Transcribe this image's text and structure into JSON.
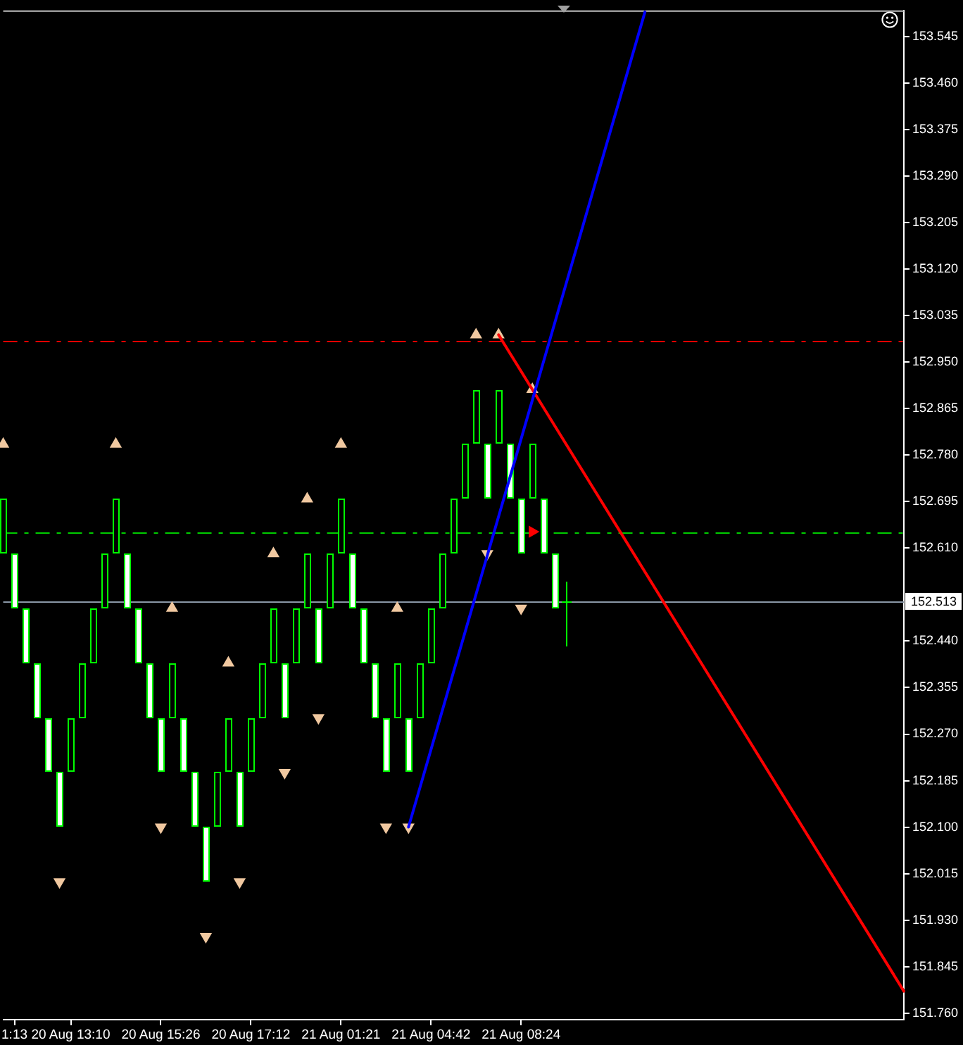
{
  "chart_data": {
    "type": "candlestick",
    "categories": [
      null,
      "1:13",
      null,
      null,
      null,
      null,
      "20 Aug 13:10",
      null,
      null,
      null,
      null,
      null,
      null,
      null,
      "20 Aug 15:26",
      null,
      null,
      null,
      null,
      null,
      null,
      null,
      "20 Aug 17:12",
      null,
      null,
      null,
      null,
      null,
      null,
      null,
      "21 Aug 01:21",
      null,
      null,
      null,
      null,
      null,
      null,
      null,
      "21 Aug 04:42",
      null,
      null,
      null,
      null,
      null,
      null,
      null,
      "21 Aug 08:24",
      null,
      null,
      null,
      null,
      null,
      null,
      null,
      null,
      null,
      null,
      null,
      null,
      null,
      null,
      null,
      null,
      null,
      null,
      null,
      null,
      null,
      null,
      null,
      null,
      null,
      null,
      null,
      null,
      null,
      null,
      null,
      null,
      null,
      null
    ],
    "ylim": [
      151.748,
      153.593
    ],
    "yticks": [
      {
        "value": 151.76,
        "label": "151.760"
      },
      151.845,
      {
        "value": 151.93,
        "label": "151.930"
      },
      152.015,
      {
        "value": 152.1,
        "label": "152.100"
      },
      152.185,
      {
        "value": 152.27,
        "label": "152.270"
      },
      152.355,
      {
        "value": 152.44,
        "label": "152.440"
      },
      {
        "value": 152.61,
        "label": "152.610"
      },
      152.695,
      {
        "value": 152.78,
        "label": "152.780"
      },
      152.865,
      {
        "value": 152.95,
        "label": "152.950"
      },
      153.035,
      {
        "value": 153.12,
        "label": "153.120"
      },
      153.205,
      {
        "value": 153.29,
        "label": "153.290"
      },
      153.375,
      {
        "value": 153.46,
        "label": "153.460"
      },
      153.545
    ],
    "grid": false,
    "legend": false,
    "ref_lines": [
      {
        "axis": "y",
        "value": 152.99,
        "color": "#ff0000",
        "line_style": "dashed"
      },
      {
        "axis": "y",
        "value": 152.64,
        "color": "#00cc00",
        "line_style": "dashed"
      },
      {
        "axis": "y",
        "value": 152.513,
        "label": "152.513",
        "color": "#8a97a6",
        "line_style": "solid"
      }
    ],
    "series": [
      {
        "color": "#00ff00",
        "ohlc": [
          [
            152.6,
            152.7,
            152.6,
            152.7
          ],
          [
            152.6,
            152.6,
            152.5,
            152.5
          ],
          [
            152.5,
            152.5,
            152.4,
            152.4
          ],
          [
            152.4,
            152.4,
            152.3,
            152.3
          ],
          [
            152.3,
            152.3,
            152.2,
            152.2
          ],
          [
            152.2,
            152.2,
            152.1,
            152.1
          ],
          [
            152.2,
            152.3,
            152.2,
            152.3
          ],
          [
            152.3,
            152.4,
            152.3,
            152.4
          ],
          [
            152.4,
            152.5,
            152.4,
            152.5
          ],
          [
            152.5,
            152.6,
            152.5,
            152.6
          ],
          [
            152.6,
            152.7,
            152.6,
            152.7
          ],
          [
            152.6,
            152.6,
            152.5,
            152.5
          ],
          [
            152.5,
            152.5,
            152.4,
            152.4
          ],
          [
            152.4,
            152.4,
            152.3,
            152.3
          ],
          [
            152.3,
            152.3,
            152.2,
            152.2
          ],
          [
            152.3,
            152.4,
            152.3,
            152.4
          ],
          [
            152.3,
            152.3,
            152.2,
            152.2
          ],
          [
            152.2,
            152.2,
            152.1,
            152.1
          ],
          [
            152.1,
            152.1,
            152.0,
            152.0
          ],
          [
            152.1,
            152.2,
            152.1,
            152.2
          ],
          [
            152.2,
            152.3,
            152.2,
            152.3
          ],
          [
            152.2,
            152.2,
            152.1,
            152.1
          ],
          [
            152.2,
            152.3,
            152.2,
            152.3
          ],
          [
            152.3,
            152.4,
            152.3,
            152.4
          ],
          [
            152.4,
            152.5,
            152.4,
            152.5
          ],
          [
            152.4,
            152.4,
            152.3,
            152.3
          ],
          [
            152.4,
            152.5,
            152.4,
            152.5
          ],
          [
            152.5,
            152.6,
            152.5,
            152.6
          ],
          [
            152.5,
            152.5,
            152.4,
            152.4
          ],
          [
            152.5,
            152.6,
            152.5,
            152.6
          ],
          [
            152.6,
            152.7,
            152.6,
            152.7
          ],
          [
            152.6,
            152.6,
            152.5,
            152.5
          ],
          [
            152.5,
            152.5,
            152.4,
            152.4
          ],
          [
            152.4,
            152.4,
            152.3,
            152.3
          ],
          [
            152.3,
            152.3,
            152.2,
            152.2
          ],
          [
            152.3,
            152.4,
            152.3,
            152.4
          ],
          [
            152.3,
            152.3,
            152.2,
            152.2
          ],
          [
            152.3,
            152.4,
            152.3,
            152.4
          ],
          [
            152.4,
            152.5,
            152.4,
            152.5
          ],
          [
            152.5,
            152.6,
            152.5,
            152.6
          ],
          [
            152.6,
            152.7,
            152.6,
            152.7
          ],
          [
            152.7,
            152.8,
            152.7,
            152.8
          ],
          [
            152.8,
            152.9,
            152.8,
            152.9
          ],
          [
            152.8,
            152.8,
            152.7,
            152.7
          ],
          [
            152.8,
            152.9,
            152.8,
            152.9
          ],
          [
            152.8,
            152.8,
            152.7,
            152.7
          ],
          [
            152.7,
            152.7,
            152.6,
            152.6
          ],
          [
            152.7,
            152.8,
            152.7,
            152.8
          ],
          [
            152.7,
            152.7,
            152.6,
            152.6
          ],
          [
            152.6,
            152.6,
            152.5,
            152.5
          ],
          [
            152.513,
            152.55,
            152.43,
            152.513
          ],
          null,
          null,
          null,
          null,
          null,
          null,
          null,
          null,
          null,
          null,
          null,
          null,
          null,
          null,
          null,
          null,
          null,
          null,
          null,
          null,
          null,
          null,
          null,
          null,
          null,
          null,
          null,
          null,
          null,
          null
        ],
        "colors": [
          "#000000",
          "#ffffff",
          "#ffffff",
          "#ffffff",
          "#ffffff",
          "#ffffff",
          "#000000",
          "#000000",
          "#000000",
          "#000000",
          "#000000",
          "#ffffff",
          "#ffffff",
          "#ffffff",
          "#ffffff",
          "#000000",
          "#ffffff",
          "#ffffff",
          "#ffffff",
          "#000000",
          "#000000",
          "#ffffff",
          "#000000",
          "#000000",
          "#000000",
          "#ffffff",
          "#000000",
          "#000000",
          "#ffffff",
          "#000000",
          "#000000",
          "#ffffff",
          "#ffffff",
          "#ffffff",
          "#ffffff",
          "#000000",
          "#ffffff",
          "#000000",
          "#000000",
          "#000000",
          "#000000",
          "#000000",
          "#000000",
          "#ffffff",
          "#000000",
          "#ffffff",
          "#ffffff",
          "#000000",
          "#ffffff",
          "#ffffff",
          "#00ff00",
          null,
          null,
          null,
          null,
          null,
          null,
          null,
          null,
          null,
          null,
          null,
          null,
          null,
          null,
          null,
          null,
          null,
          null,
          null,
          null,
          null,
          null,
          null,
          null,
          null,
          null,
          null,
          null,
          null,
          null
        ]
      },
      {
        "type": "scatter",
        "marker": "triangle",
        "color": "#f0c8a0",
        "values": [
          152.8,
          null,
          null,
          null,
          null,
          null,
          null,
          null,
          null,
          null,
          152.8,
          null,
          null,
          null,
          null,
          152.5,
          null,
          null,
          null,
          null,
          152.4,
          null,
          null,
          null,
          152.6,
          null,
          null,
          152.7,
          null,
          null,
          152.8,
          null,
          null,
          null,
          null,
          152.5,
          null,
          null,
          null,
          null,
          null,
          null,
          153.0,
          null,
          153.0,
          null,
          null,
          152.9,
          null,
          null,
          null,
          null,
          null,
          null,
          null,
          null,
          null,
          null,
          null,
          null,
          null,
          null,
          null,
          null,
          null,
          null,
          null,
          null,
          null,
          null,
          null,
          null,
          null,
          null,
          null,
          null,
          null,
          null,
          null,
          null,
          null
        ]
      },
      {
        "type": "scatter",
        "marker": "triangle-down",
        "color": "#f0c8a0",
        "values": [
          null,
          null,
          null,
          null,
          null,
          152.0,
          null,
          null,
          null,
          null,
          null,
          null,
          null,
          null,
          152.1,
          null,
          null,
          null,
          151.9,
          null,
          null,
          152.0,
          null,
          null,
          null,
          152.2,
          null,
          null,
          152.3,
          null,
          null,
          null,
          null,
          null,
          152.1,
          null,
          152.1,
          null,
          null,
          null,
          null,
          null,
          null,
          152.6,
          null,
          null,
          152.5,
          null,
          null,
          null,
          null,
          null,
          null,
          null,
          null,
          null,
          null,
          null,
          null,
          null,
          null,
          null,
          null,
          null,
          null,
          null,
          null,
          null,
          null,
          null,
          null,
          null,
          null,
          null,
          null,
          null,
          null,
          null,
          null,
          null,
          null
        ]
      },
      {
        "type": "scatter",
        "marker": "triangle-right",
        "color": "#ff0000",
        "values": [
          null,
          null,
          null,
          null,
          null,
          null,
          null,
          null,
          null,
          null,
          null,
          null,
          null,
          null,
          null,
          null,
          null,
          null,
          null,
          null,
          null,
          null,
          null,
          null,
          null,
          null,
          null,
          null,
          null,
          null,
          null,
          null,
          null,
          null,
          null,
          null,
          null,
          null,
          null,
          null,
          null,
          null,
          null,
          null,
          null,
          null,
          null,
          152.64,
          null,
          null,
          null,
          null,
          null,
          null,
          null,
          null,
          null,
          null,
          null,
          null,
          null,
          null,
          null,
          null,
          null,
          null,
          null,
          null,
          null,
          null,
          null,
          null,
          null,
          null,
          null,
          null,
          null,
          null,
          null,
          null,
          null
        ]
      },
      {
        "type": "line",
        "color": "#0000ff",
        "values": [
          null,
          null,
          null,
          null,
          null,
          null,
          null,
          null,
          null,
          null,
          null,
          null,
          null,
          null,
          null,
          null,
          null,
          null,
          null,
          null,
          null,
          null,
          null,
          null,
          null,
          null,
          null,
          null,
          null,
          null,
          null,
          null,
          null,
          null,
          null,
          null,
          152.1,
          null,
          null,
          null,
          null,
          null,
          null,
          null,
          null,
          null,
          null,
          null,
          null,
          null,
          null,
          null,
          null,
          null,
          null,
          null,
          null,
          153.59,
          null,
          null,
          null,
          null,
          null,
          null,
          null,
          null,
          null,
          null,
          null,
          null,
          null,
          null,
          null,
          null,
          null,
          null,
          null,
          null,
          null,
          null,
          null
        ]
      },
      {
        "type": "line",
        "color": "#ff0000",
        "values": [
          null,
          null,
          null,
          null,
          null,
          null,
          null,
          null,
          null,
          null,
          null,
          null,
          null,
          null,
          null,
          null,
          null,
          null,
          null,
          null,
          null,
          null,
          null,
          null,
          null,
          null,
          null,
          null,
          null,
          null,
          null,
          null,
          null,
          null,
          null,
          null,
          null,
          null,
          null,
          null,
          null,
          null,
          null,
          null,
          153.0,
          null,
          null,
          null,
          null,
          null,
          null,
          null,
          null,
          null,
          null,
          null,
          null,
          null,
          null,
          null,
          null,
          null,
          null,
          null,
          null,
          null,
          null,
          null,
          null,
          null,
          null,
          null,
          null,
          null,
          null,
          null,
          null,
          null,
          null,
          null,
          151.8
        ]
      }
    ]
  }
}
